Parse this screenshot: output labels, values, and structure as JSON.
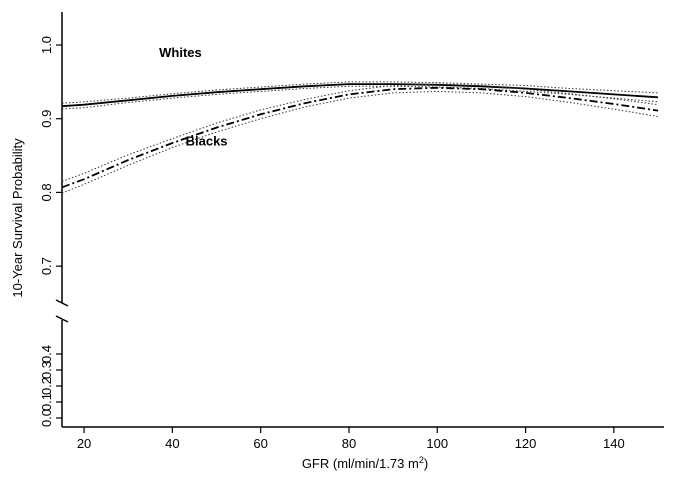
{
  "chart_data": {
    "type": "line",
    "title": "",
    "xlabel": "GFR (ml/min/1.73 m",
    "xlabel_sup": "2",
    "xlabel_close": ")",
    "ylabel": "10-Year Survival Probability",
    "xlim": [
      15,
      150
    ],
    "xticks": [
      "20",
      "40",
      "60",
      "80",
      "100",
      "120",
      "140"
    ],
    "y_upper_ticks": [
      "0.7",
      "0.8",
      "0.9",
      "1.0"
    ],
    "y_lower_ticks": [
      "0.0",
      "0.1",
      "0.2",
      "0.3",
      "0.4"
    ],
    "axis_break": true,
    "grid": false,
    "legend": "none (direct labels)",
    "x": [
      15,
      20,
      30,
      40,
      50,
      60,
      70,
      80,
      90,
      100,
      110,
      120,
      130,
      140,
      150
    ],
    "series": [
      {
        "name": "Whites",
        "style": "solid",
        "values": [
          0.917,
          0.919,
          0.925,
          0.931,
          0.936,
          0.94,
          0.944,
          0.947,
          0.947,
          0.946,
          0.944,
          0.941,
          0.937,
          0.933,
          0.929
        ],
        "ci_lower": [
          0.913,
          0.915,
          0.922,
          0.928,
          0.933,
          0.937,
          0.941,
          0.944,
          0.944,
          0.943,
          0.941,
          0.937,
          0.933,
          0.928,
          0.923
        ],
        "ci_upper": [
          0.921,
          0.923,
          0.928,
          0.934,
          0.939,
          0.943,
          0.947,
          0.95,
          0.95,
          0.949,
          0.947,
          0.945,
          0.941,
          0.938,
          0.935
        ]
      },
      {
        "name": "Blacks",
        "style": "dashdot",
        "values": [
          0.807,
          0.818,
          0.844,
          0.867,
          0.888,
          0.906,
          0.921,
          0.933,
          0.94,
          0.942,
          0.94,
          0.935,
          0.928,
          0.92,
          0.911
        ],
        "ci_lower": [
          0.799,
          0.811,
          0.837,
          0.861,
          0.882,
          0.9,
          0.916,
          0.928,
          0.935,
          0.937,
          0.935,
          0.93,
          0.922,
          0.913,
          0.903
        ],
        "ci_upper": [
          0.815,
          0.826,
          0.851,
          0.873,
          0.894,
          0.912,
          0.926,
          0.938,
          0.945,
          0.947,
          0.945,
          0.94,
          0.934,
          0.927,
          0.919
        ]
      }
    ],
    "labels": [
      {
        "text": "Whites",
        "x": 37,
        "y": 0.984
      },
      {
        "text": "Blacks",
        "x": 43,
        "y": 0.864
      }
    ]
  }
}
